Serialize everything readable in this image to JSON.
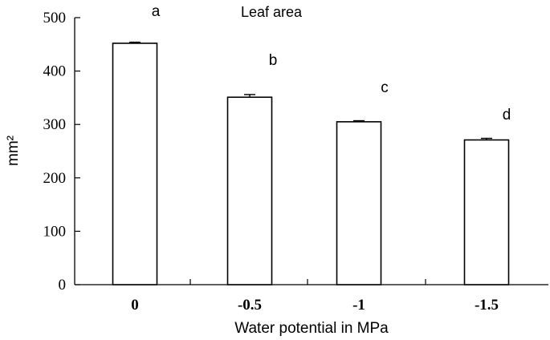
{
  "chart_data": {
    "type": "bar",
    "title": "Leaf area",
    "xlabel": "Water potential in MPa",
    "ylabel": "mm²",
    "categories": [
      "0",
      "-0.5",
      "-1",
      "-1.5"
    ],
    "values": [
      452,
      351,
      305,
      271
    ],
    "errors": [
      2,
      5,
      2,
      3
    ],
    "annotations": [
      "a",
      "b",
      "c",
      "d"
    ],
    "ylim": [
      0,
      500
    ],
    "yticks": [
      0,
      100,
      200,
      300,
      400,
      500
    ],
    "grid": false,
    "bar_fill": "#ffffff",
    "bar_stroke": "#000000"
  }
}
